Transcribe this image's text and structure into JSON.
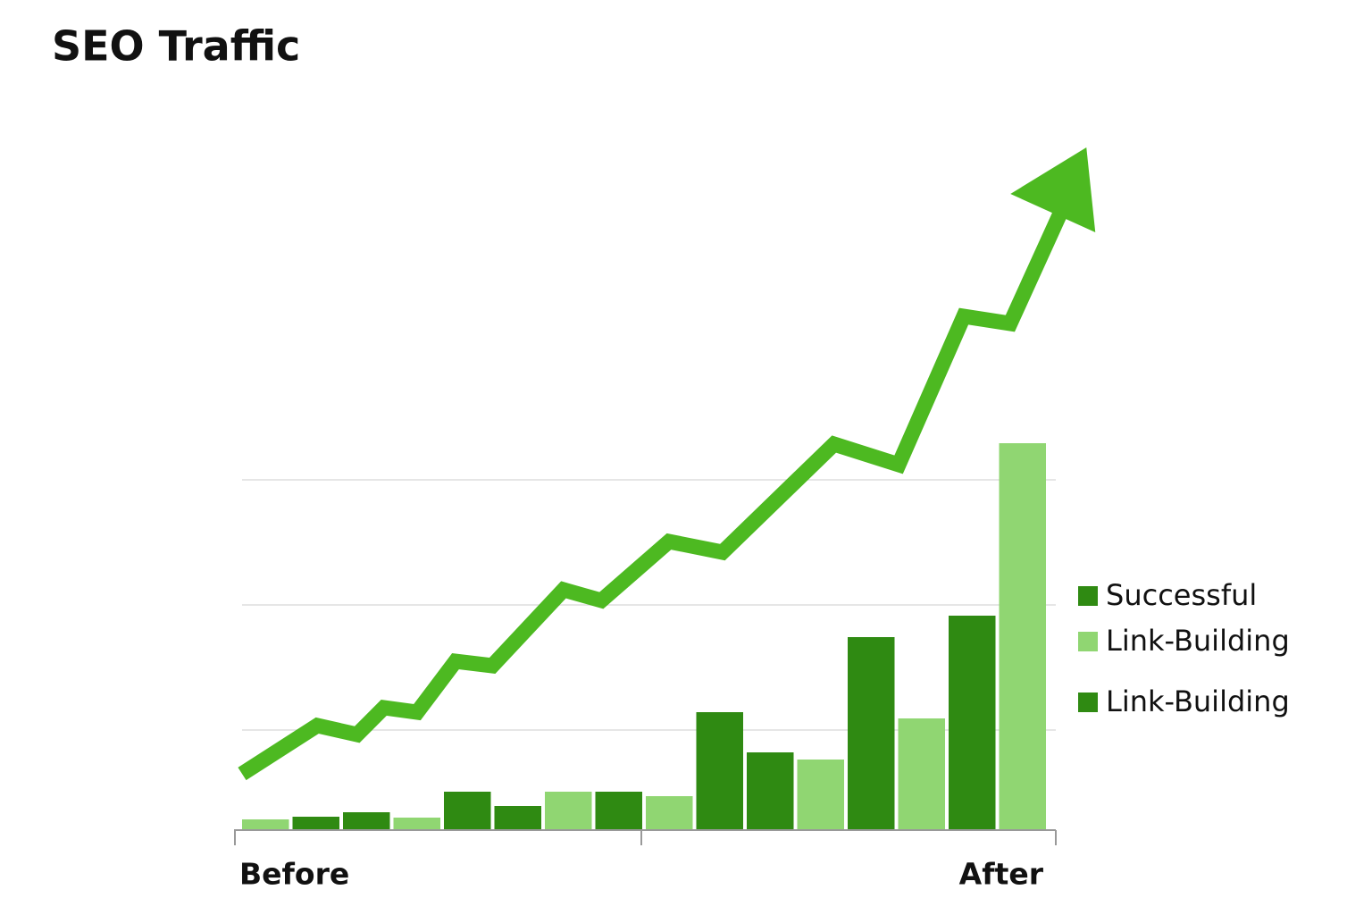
{
  "chart_data": {
    "type": "bar",
    "title": "SEO Traffic",
    "x_labels": [
      "Before",
      "After"
    ],
    "xlim": [
      0,
      16
    ],
    "ylim": [
      0,
      800
    ],
    "grid_values": [
      111,
      251,
      391
    ],
    "series": [
      {
        "name": "Successful",
        "color": "#2f8a12",
        "values": [
          null,
          14,
          19,
          null,
          42,
          26,
          null,
          42,
          null,
          131,
          86,
          null,
          215,
          null,
          239,
          null
        ]
      },
      {
        "name": "Link-Building",
        "color": "#90d672",
        "values": [
          11,
          null,
          null,
          13,
          null,
          null,
          42,
          null,
          37,
          null,
          null,
          78,
          null,
          124,
          null,
          432
        ]
      }
    ],
    "legend": [
      {
        "name": "Successful",
        "color": "#2f8a12"
      },
      {
        "name": "Link-Building",
        "color": "#90d672"
      },
      {
        "name": "Link-Building",
        "color": "#2f8a12"
      }
    ],
    "trend": {
      "color": "#4db921",
      "x": [
        0,
        1.49,
        2.28,
        2.81,
        3.47,
        4.23,
        4.96,
        6.37,
        7.12,
        8.46,
        9.52,
        11.73,
        13.01,
        14.3,
        15.22,
        16.5
      ],
      "values": [
        62,
        116,
        106,
        136,
        131,
        188,
        183,
        268,
        256,
        322,
        310,
        431,
        408,
        574,
        566,
        725
      ]
    }
  }
}
